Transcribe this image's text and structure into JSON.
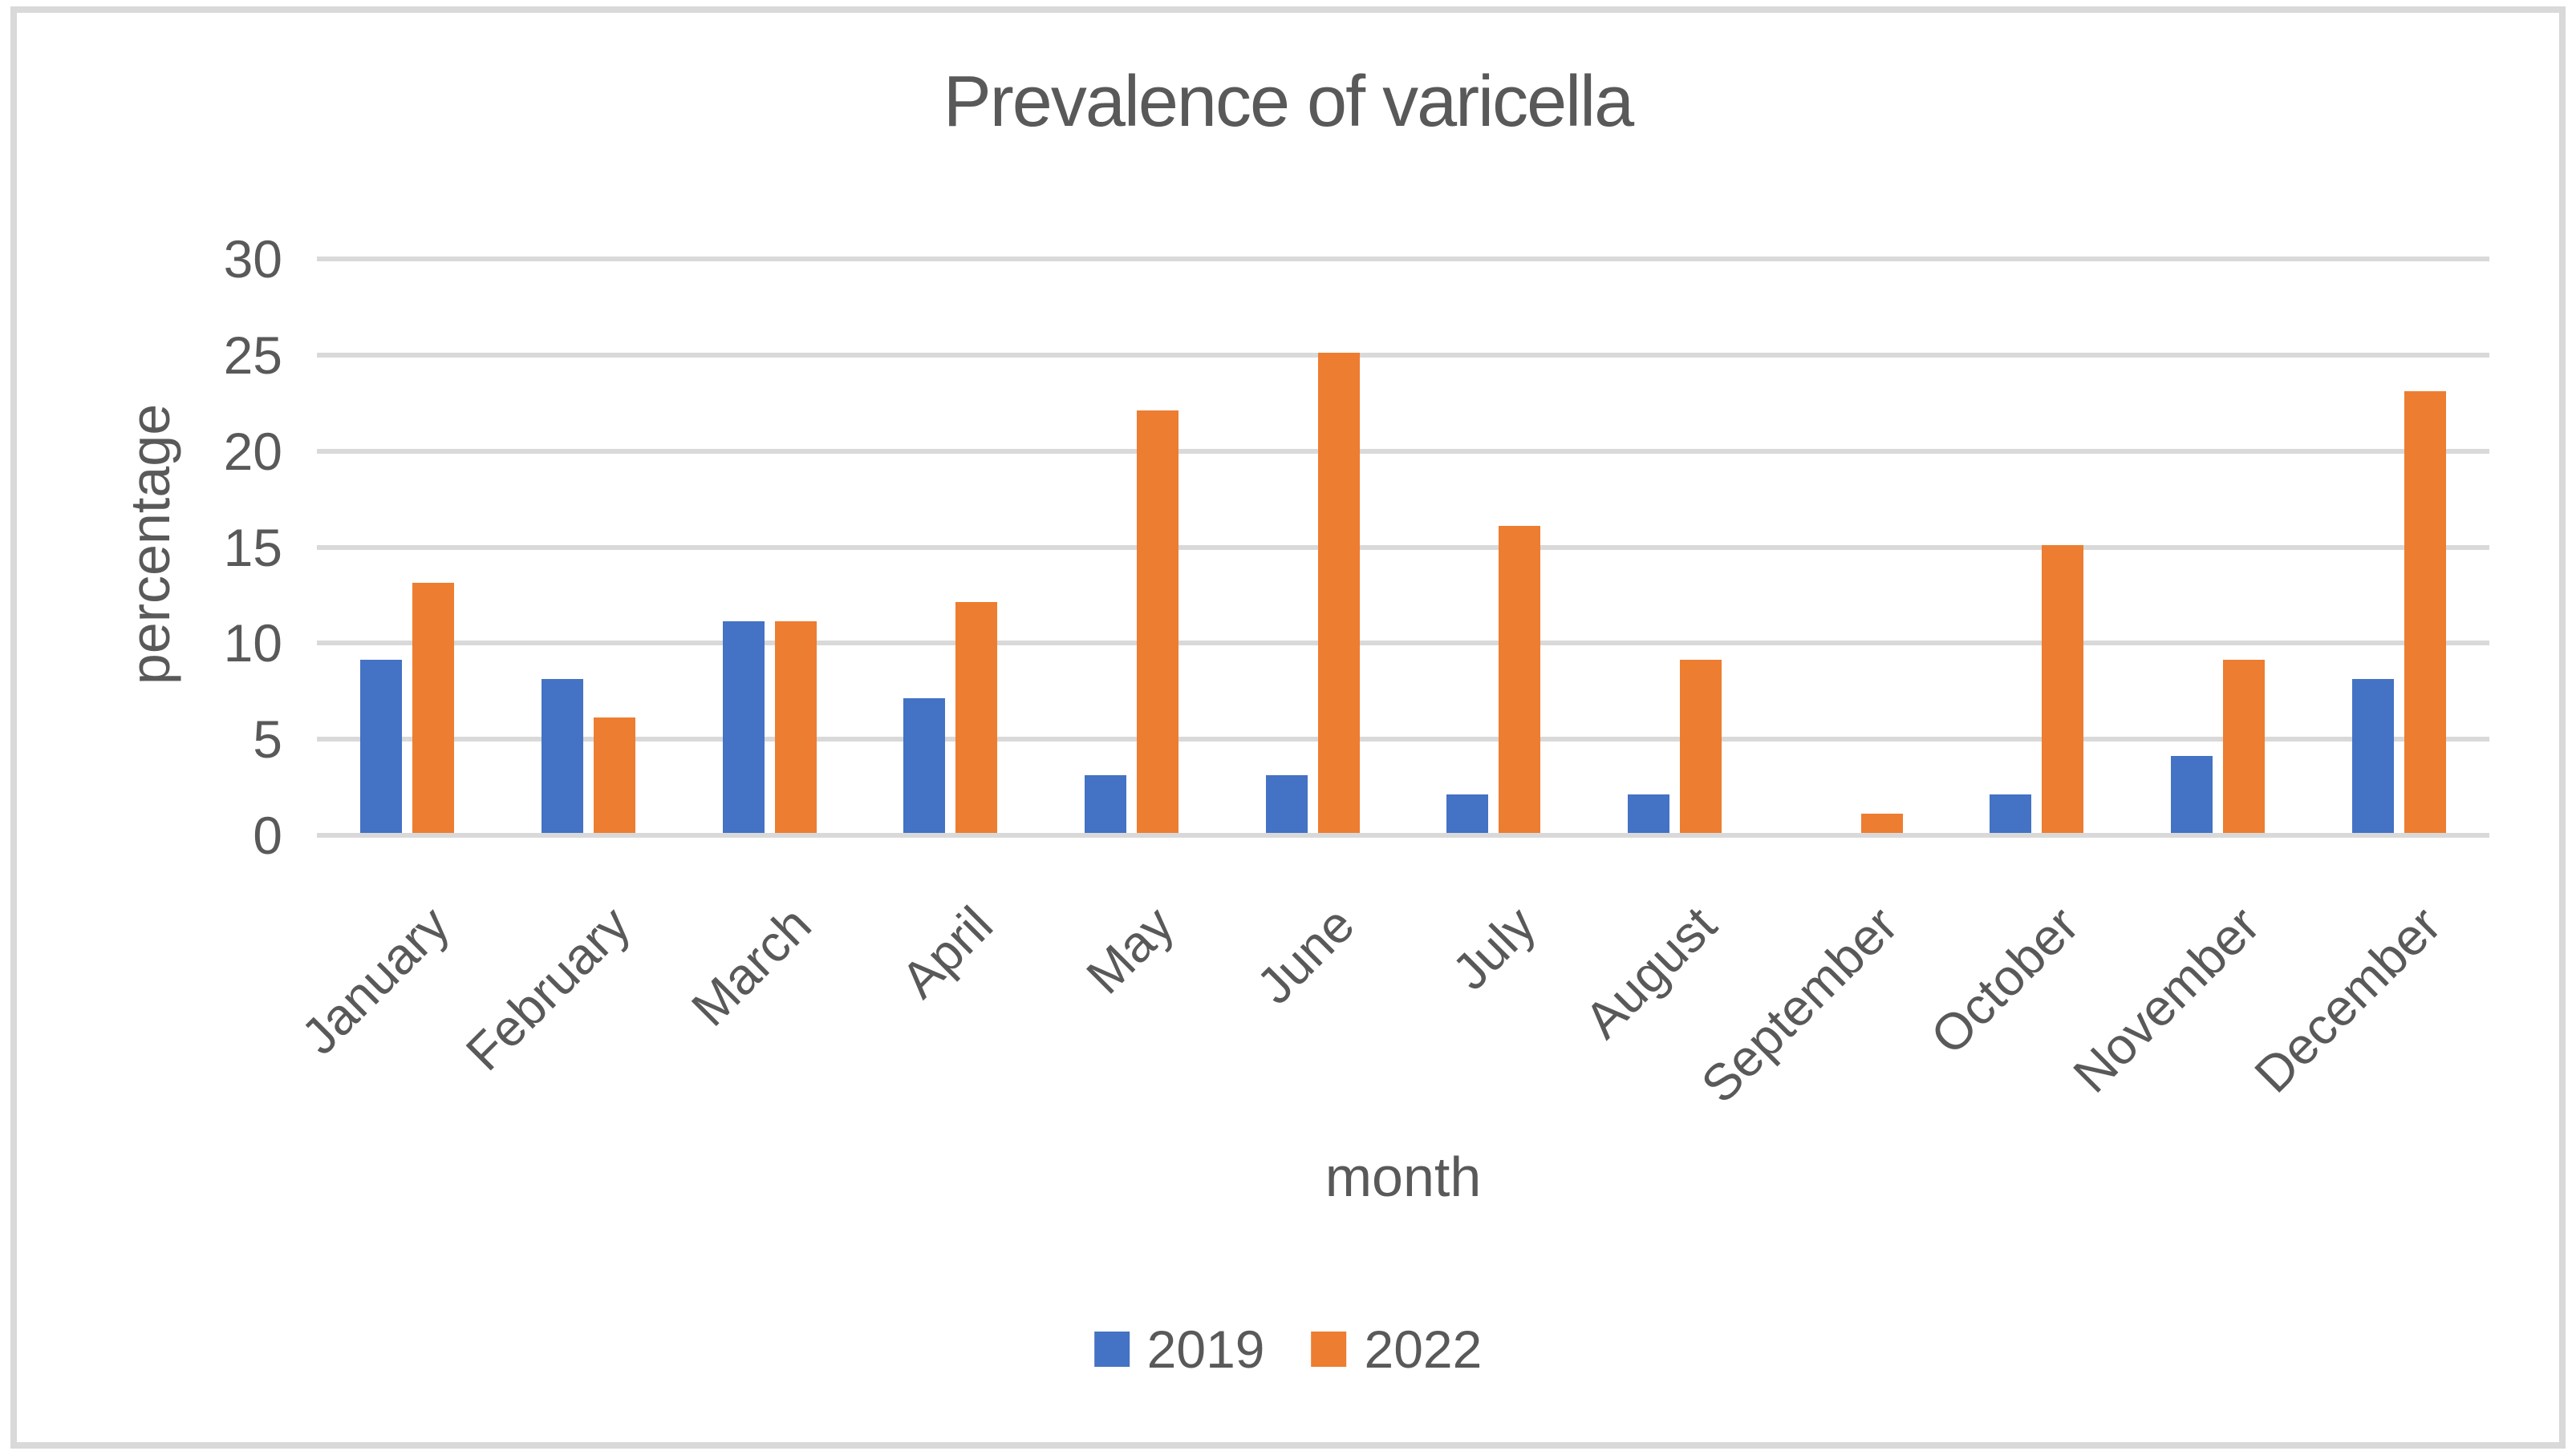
{
  "chart_data": {
    "type": "bar",
    "title": "Prevalence of varicella",
    "xlabel": "month",
    "ylabel": "percentage",
    "categories": [
      "January",
      "February",
      "March",
      "April",
      "May",
      "June",
      "July",
      "August",
      "September",
      "October",
      "November",
      "December"
    ],
    "series": [
      {
        "name": "2019",
        "color": "#4472C4",
        "values": [
          9,
          8,
          11,
          7,
          3,
          3,
          2,
          2,
          0,
          2,
          4,
          8
        ]
      },
      {
        "name": "2022",
        "color": "#ED7D31",
        "values": [
          13,
          6,
          11,
          12,
          22,
          25,
          16,
          9,
          1,
          15,
          9,
          23
        ]
      }
    ],
    "ylim": [
      0,
      30
    ],
    "yticks": [
      0,
      5,
      10,
      15,
      20,
      25,
      30
    ],
    "grid": true,
    "legend_position": "bottom",
    "colors": {
      "text": "#595959",
      "gridline": "#D9D9D9",
      "border": "#D9D9D9",
      "background": "#FFFFFF"
    }
  }
}
